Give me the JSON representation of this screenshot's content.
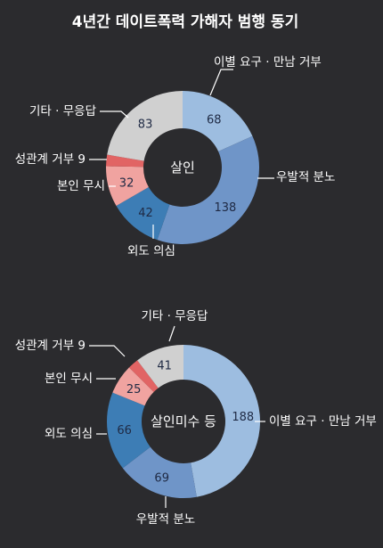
{
  "chart_data": [
    {
      "type": "donut",
      "title": "4년간 데이트폭력 가해자 범행 동기",
      "center_label": "살인",
      "slices": [
        {
          "label": "이별 요구 · 만남 거부",
          "value": 68,
          "color": "#9dbde0"
        },
        {
          "label": "우발적 분노",
          "value": 138,
          "color": "#6f95c8"
        },
        {
          "label": "외도 의심",
          "value": 42,
          "color": "#3d7db5"
        },
        {
          "label": "본인 무시",
          "value": 32,
          "color": "#f0a3a0"
        },
        {
          "label": "성관계 거부 9",
          "value": 9,
          "color": "#e16464"
        },
        {
          "label": "기타 · 무응답",
          "value": 83,
          "color": "#d0d0d0"
        }
      ]
    },
    {
      "type": "donut",
      "center_label": "살인미수 등",
      "slices": [
        {
          "label": "이별 요구 · 만남 거부",
          "value": 188,
          "color": "#9dbde0"
        },
        {
          "label": "우발적 분노",
          "value": 69,
          "color": "#6f95c8"
        },
        {
          "label": "외도 의심",
          "value": 66,
          "color": "#3d7db5"
        },
        {
          "label": "본인 무시",
          "value": 25,
          "color": "#f0a3a0"
        },
        {
          "label": "성관계 거부 9",
          "value": 9,
          "color": "#e16464"
        },
        {
          "label": "기타 · 무응답",
          "value": 41,
          "color": "#d0d0d0"
        }
      ]
    }
  ]
}
